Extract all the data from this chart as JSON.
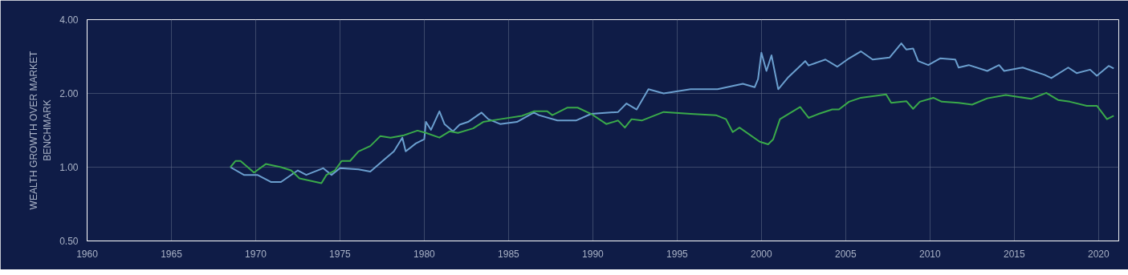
{
  "chart_data": {
    "type": "line",
    "ylabel": "WEALTH GROWTH OVER MARKET\nBENCHMARK",
    "log": "y",
    "grid": true,
    "marker": "none",
    "line_style": "solid",
    "xlim": [
      1960,
      2021.2
    ],
    "xticks": [
      1960,
      1965,
      1970,
      1975,
      1980,
      1985,
      1990,
      1995,
      2000,
      2005,
      2010,
      2015,
      2020
    ],
    "ylim": [
      0.5,
      4
    ],
    "yticks": [
      {
        "value": 0.5,
        "label": "0.50"
      },
      {
        "value": 1,
        "label": "1.00"
      },
      {
        "value": 2,
        "label": "2.00"
      },
      {
        "value": 4,
        "label": "4.00"
      }
    ],
    "series": [
      {
        "color": "#6b9fcf",
        "x": [
          1968.5,
          1969.3,
          1970.1,
          1970.9,
          1971.5,
          1972.5,
          1973.0,
          1974.0,
          1974.5,
          1975.0,
          1976.1,
          1976.8,
          1977.6,
          1978.2,
          1978.7,
          1978.9,
          1979.5,
          1980.0,
          1980.1,
          1980.4,
          1980.9,
          1981.2,
          1981.7,
          1982.1,
          1982.6,
          1983.4,
          1983.8,
          1984.5,
          1985.5,
          1986.5,
          1986.8,
          1987.9,
          1989.0,
          1989.9,
          1991.5,
          1992.0,
          1992.6,
          1993.3,
          1994.2,
          1995.8,
          1997.4,
          1998.9,
          1999.6,
          1999.8,
          2000.0,
          2000.3,
          2000.6,
          2001.0,
          2001.6,
          2002.6,
          2002.8,
          2003.8,
          2004.5,
          2005.2,
          2005.9,
          2006.6,
          2007.6,
          2008.3,
          2008.6,
          2009.0,
          2009.3,
          2009.9,
          2010.6,
          2011.5,
          2011.7,
          2012.3,
          2013.4,
          2014.1,
          2014.4,
          2015.5,
          2016.8,
          2017.2,
          2018.2,
          2018.7,
          2019.5,
          2019.9,
          2020.6,
          2020.9
        ],
        "values": [
          1.0,
          0.93,
          0.93,
          0.87,
          0.87,
          0.97,
          0.93,
          0.99,
          0.93,
          0.99,
          0.98,
          0.96,
          1.07,
          1.16,
          1.32,
          1.16,
          1.25,
          1.3,
          1.53,
          1.42,
          1.69,
          1.5,
          1.4,
          1.49,
          1.53,
          1.67,
          1.57,
          1.5,
          1.53,
          1.67,
          1.63,
          1.55,
          1.55,
          1.65,
          1.68,
          1.82,
          1.72,
          2.08,
          2.0,
          2.08,
          2.08,
          2.19,
          2.12,
          2.29,
          2.93,
          2.47,
          2.86,
          2.08,
          2.33,
          2.71,
          2.6,
          2.75,
          2.57,
          2.78,
          2.97,
          2.75,
          2.8,
          3.2,
          3.02,
          3.05,
          2.71,
          2.61,
          2.78,
          2.75,
          2.55,
          2.61,
          2.47,
          2.61,
          2.47,
          2.55,
          2.38,
          2.31,
          2.55,
          2.42,
          2.5,
          2.36,
          2.59,
          2.53
        ]
      },
      {
        "color": "#3aaa4a",
        "x": [
          1968.5,
          1968.8,
          1969.1,
          1969.9,
          1970.6,
          1971.5,
          1972.1,
          1972.6,
          1973.9,
          1974.2,
          1974.7,
          1975.1,
          1975.6,
          1976.1,
          1976.8,
          1977.4,
          1978.0,
          1978.8,
          1979.6,
          1980.1,
          1980.9,
          1981.5,
          1982.0,
          1982.9,
          1983.5,
          1984.5,
          1985.8,
          1986.5,
          1987.3,
          1987.6,
          1988.5,
          1989.1,
          1989.9,
          1990.8,
          1991.5,
          1991.9,
          1992.3,
          1992.9,
          1994.2,
          1995.8,
          1997.3,
          1997.9,
          1998.3,
          1998.7,
          1999.9,
          2000.4,
          2000.7,
          2001.1,
          2002.3,
          2002.8,
          2003.4,
          2004.2,
          2004.6,
          2005.2,
          2005.9,
          2007.4,
          2007.7,
          2008.6,
          2009.0,
          2009.4,
          2010.2,
          2010.7,
          2011.7,
          2012.5,
          2013.4,
          2014.5,
          2016.0,
          2016.9,
          2017.6,
          2018.3,
          2019.3,
          2019.9,
          2020.5,
          2020.9
        ],
        "values": [
          1.0,
          1.06,
          1.06,
          0.95,
          1.03,
          1.0,
          0.97,
          0.9,
          0.86,
          0.93,
          0.97,
          1.06,
          1.06,
          1.16,
          1.22,
          1.34,
          1.32,
          1.35,
          1.41,
          1.38,
          1.32,
          1.4,
          1.38,
          1.44,
          1.53,
          1.57,
          1.62,
          1.69,
          1.69,
          1.63,
          1.75,
          1.75,
          1.65,
          1.5,
          1.55,
          1.45,
          1.57,
          1.55,
          1.68,
          1.65,
          1.63,
          1.57,
          1.39,
          1.45,
          1.27,
          1.24,
          1.3,
          1.57,
          1.76,
          1.59,
          1.65,
          1.72,
          1.72,
          1.85,
          1.92,
          1.98,
          1.83,
          1.86,
          1.73,
          1.85,
          1.92,
          1.85,
          1.83,
          1.8,
          1.91,
          1.97,
          1.9,
          2.01,
          1.88,
          1.85,
          1.78,
          1.78,
          1.57,
          1.62
        ]
      }
    ]
  }
}
